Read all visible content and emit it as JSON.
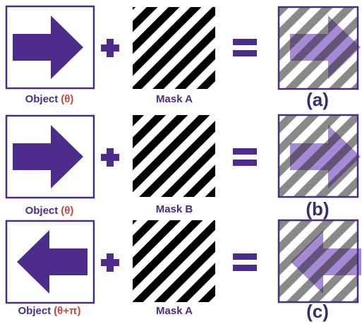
{
  "rows": [
    {
      "object_label": "Object",
      "object_angle": "(θ)",
      "mask_label": "Mask A",
      "result_label": "(a)"
    },
    {
      "object_label": "Object",
      "object_angle": "(θ)",
      "mask_label": "Mask B",
      "result_label": "(b)"
    },
    {
      "object_label": "Object",
      "object_angle": "(θ+π)",
      "mask_label": "Mask A",
      "result_label": "(c)"
    }
  ]
}
